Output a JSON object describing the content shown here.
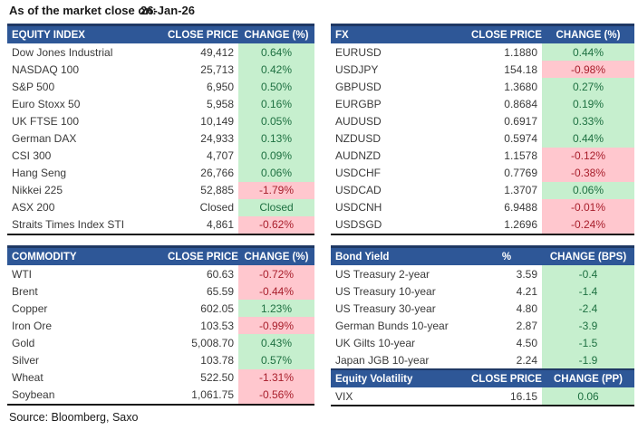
{
  "meta": {
    "as_of_label": "As of the market close on:",
    "as_of_date": "26-Jan-26",
    "source": "Source: Bloomberg, Saxo"
  },
  "colors": {
    "header_bg": "#2E5797",
    "header_top_border": "#1F3864",
    "header_text": "#FFFFFF",
    "positive_bg": "#C6EFCE",
    "positive_text": "#1E7041",
    "negative_bg": "#FFC7CE",
    "negative_text": "#A81E2B",
    "body_text": "#3A3A3A"
  },
  "tables": {
    "equity": {
      "headers": [
        "EQUITY INDEX",
        "CLOSE PRICE",
        "CHANGE (%)"
      ],
      "rows": [
        {
          "name": "Dow Jones Industrial",
          "price": "49,412",
          "change": "0.64%",
          "dir": "pos"
        },
        {
          "name": "NASDAQ 100",
          "price": "25,713",
          "change": "0.42%",
          "dir": "pos"
        },
        {
          "name": "S&P 500",
          "price": "6,950",
          "change": "0.50%",
          "dir": "pos"
        },
        {
          "name": "Euro Stoxx 50",
          "price": "5,958",
          "change": "0.16%",
          "dir": "pos"
        },
        {
          "name": "UK FTSE 100",
          "price": "10,149",
          "change": "0.05%",
          "dir": "pos"
        },
        {
          "name": "German DAX",
          "price": "24,933",
          "change": "0.13%",
          "dir": "pos"
        },
        {
          "name": "CSI 300",
          "price": "4,707",
          "change": "0.09%",
          "dir": "pos"
        },
        {
          "name": "Hang Seng",
          "price": "26,766",
          "change": "0.06%",
          "dir": "pos"
        },
        {
          "name": "Nikkei 225",
          "price": "52,885",
          "change": "-1.79%",
          "dir": "neg"
        },
        {
          "name": "ASX 200",
          "price": "Closed",
          "change": "Closed",
          "dir": "pos"
        },
        {
          "name": "Straits Times Index STI",
          "price": "4,861",
          "change": "-0.62%",
          "dir": "neg"
        }
      ]
    },
    "fx": {
      "headers": [
        "FX",
        "CLOSE PRICE",
        "CHANGE (%)"
      ],
      "rows": [
        {
          "name": "EURUSD",
          "price": "1.1880",
          "change": "0.44%",
          "dir": "pos"
        },
        {
          "name": "USDJPY",
          "price": "154.18",
          "change": "-0.98%",
          "dir": "neg"
        },
        {
          "name": "GBPUSD",
          "price": "1.3680",
          "change": "0.27%",
          "dir": "pos"
        },
        {
          "name": "EURGBP",
          "price": "0.8684",
          "change": "0.19%",
          "dir": "pos"
        },
        {
          "name": "AUDUSD",
          "price": "0.6917",
          "change": "0.33%",
          "dir": "pos"
        },
        {
          "name": "NZDUSD",
          "price": "0.5974",
          "change": "0.44%",
          "dir": "pos"
        },
        {
          "name": "AUDNZD",
          "price": "1.1578",
          "change": "-0.12%",
          "dir": "neg"
        },
        {
          "name": "USDCHF",
          "price": "0.7769",
          "change": "-0.38%",
          "dir": "neg"
        },
        {
          "name": "USDCAD",
          "price": "1.3707",
          "change": "0.06%",
          "dir": "pos"
        },
        {
          "name": "USDCNH",
          "price": "6.9488",
          "change": "-0.01%",
          "dir": "neg"
        },
        {
          "name": "USDSGD",
          "price": "1.2696",
          "change": "-0.24%",
          "dir": "neg"
        }
      ]
    },
    "commodity": {
      "headers": [
        "COMMODITY",
        "CLOSE PRICE",
        "CHANGE (%)"
      ],
      "rows": [
        {
          "name": "WTI",
          "price": "60.63",
          "change": "-0.72%",
          "dir": "neg"
        },
        {
          "name": "Brent",
          "price": "65.59",
          "change": "-0.44%",
          "dir": "neg"
        },
        {
          "name": "Copper",
          "price": "602.05",
          "change": "1.23%",
          "dir": "pos"
        },
        {
          "name": "Iron Ore",
          "price": "103.53",
          "change": "-0.99%",
          "dir": "neg"
        },
        {
          "name": "Gold",
          "price": "5,008.70",
          "change": "0.43%",
          "dir": "pos"
        },
        {
          "name": "Silver",
          "price": "103.78",
          "change": "0.57%",
          "dir": "pos"
        },
        {
          "name": "Wheat",
          "price": "522.50",
          "change": "-1.31%",
          "dir": "neg"
        },
        {
          "name": "Soybean",
          "price": "1,061.75",
          "change": "-0.56%",
          "dir": "neg"
        }
      ]
    },
    "bond": {
      "headers": [
        "Bond Yield",
        "%",
        "CHANGE (BPS)"
      ],
      "rows": [
        {
          "name": "US Treasury 2-year",
          "price": "3.59",
          "change": "-0.4",
          "dir": "pos"
        },
        {
          "name": "US Treasury 10-year",
          "price": "4.21",
          "change": "-1.4",
          "dir": "pos"
        },
        {
          "name": "US Treasury 30-year",
          "price": "4.80",
          "change": "-2.4",
          "dir": "pos"
        },
        {
          "name": "German Bunds 10-year",
          "price": "2.87",
          "change": "-3.9",
          "dir": "pos"
        },
        {
          "name": "UK Gilts 10-year",
          "price": "4.50",
          "change": "-1.5",
          "dir": "pos"
        },
        {
          "name": "Japan JGB 10-year",
          "price": "2.24",
          "change": "-1.9",
          "dir": "pos"
        }
      ]
    },
    "volatility": {
      "headers": [
        "Equity Volatility",
        "CLOSE PRICE",
        "CHANGE (PP)"
      ],
      "rows": [
        {
          "name": "VIX",
          "price": "16.15",
          "change": "0.06",
          "dir": "pos"
        }
      ]
    }
  }
}
